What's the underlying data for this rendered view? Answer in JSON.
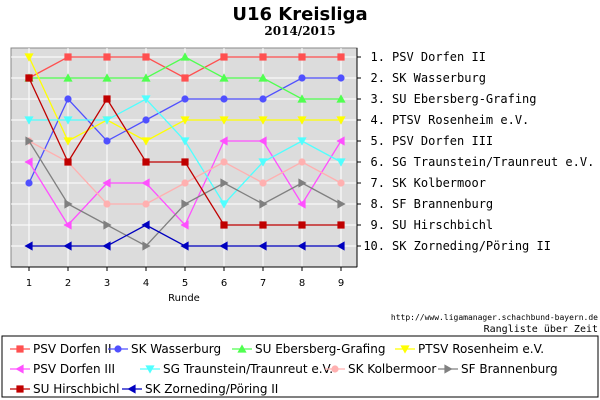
{
  "chart_data": {
    "type": "line",
    "title": "U16 Kreisliga",
    "subtitle": "2014/2015",
    "xlabel": "Runde",
    "source": "http://www.ligamanager.schachbund-bayern.de",
    "caption": "Rangliste über Zeit",
    "x": [
      1,
      2,
      3,
      4,
      5,
      6,
      7,
      8,
      9
    ],
    "ylim": [
      1,
      10
    ],
    "y_inverted": true,
    "grid": true,
    "legend_position": "bottom",
    "rank_labels": [
      "1. PSV Dorfen II",
      "2. SK Wasserburg",
      "3. SU Ebersberg-Grafing",
      "4. PTSV Rosenheim e.V.",
      "5. PSV Dorfen III",
      "6. SG Traunstein/Traunreut e.V.",
      "7. SK Kolbermoor",
      "8. SF Brannenburg",
      "9. SU Hirschbichl",
      "10. SK Zorneding/Pöring II"
    ],
    "series": [
      {
        "name": "PSV Dorfen II",
        "color": "#ff5050",
        "marker": "square",
        "values": [
          2,
          1,
          1,
          1,
          2,
          1,
          1,
          1,
          1
        ]
      },
      {
        "name": "SK Wasserburg",
        "color": "#5050ff",
        "marker": "circle",
        "values": [
          7,
          3,
          5,
          4,
          3,
          3,
          3,
          2,
          2
        ]
      },
      {
        "name": "SU Ebersberg-Grafing",
        "color": "#50ff50",
        "marker": "triangle-up",
        "values": [
          2,
          2,
          2,
          2,
          1,
          2,
          2,
          3,
          3
        ]
      },
      {
        "name": "PTSV Rosenheim e.V.",
        "color": "#ffff00",
        "marker": "triangle-down",
        "values": [
          1,
          5,
          4,
          5,
          4,
          4,
          4,
          4,
          4
        ]
      },
      {
        "name": "PSV Dorfen III",
        "color": "#ff50ff",
        "marker": "triangle-left",
        "values": [
          6,
          9,
          7,
          7,
          9,
          5,
          5,
          8,
          5
        ]
      },
      {
        "name": "SG Traunstein/Traunreut e.V.",
        "color": "#50ffff",
        "marker": "triangle-down",
        "values": [
          4,
          4,
          4,
          3,
          5,
          8,
          6,
          5,
          6
        ]
      },
      {
        "name": "SK Kolbermoor",
        "color": "#ffb0b0",
        "marker": "circle",
        "values": [
          5,
          6,
          8,
          8,
          7,
          6,
          7,
          6,
          7
        ]
      },
      {
        "name": "SF Brannenburg",
        "color": "#808080",
        "marker": "triangle-right",
        "values": [
          5,
          8,
          9,
          10,
          8,
          7,
          8,
          7,
          8
        ]
      },
      {
        "name": "SU Hirschbichl",
        "color": "#c00000",
        "marker": "square",
        "values": [
          2,
          6,
          3,
          6,
          6,
          9,
          9,
          9,
          9
        ]
      },
      {
        "name": "SK Zorneding/Pöring II",
        "color": "#0000c0",
        "marker": "triangle-left",
        "values": [
          10,
          10,
          10,
          9,
          10,
          10,
          10,
          10,
          10
        ]
      }
    ]
  }
}
